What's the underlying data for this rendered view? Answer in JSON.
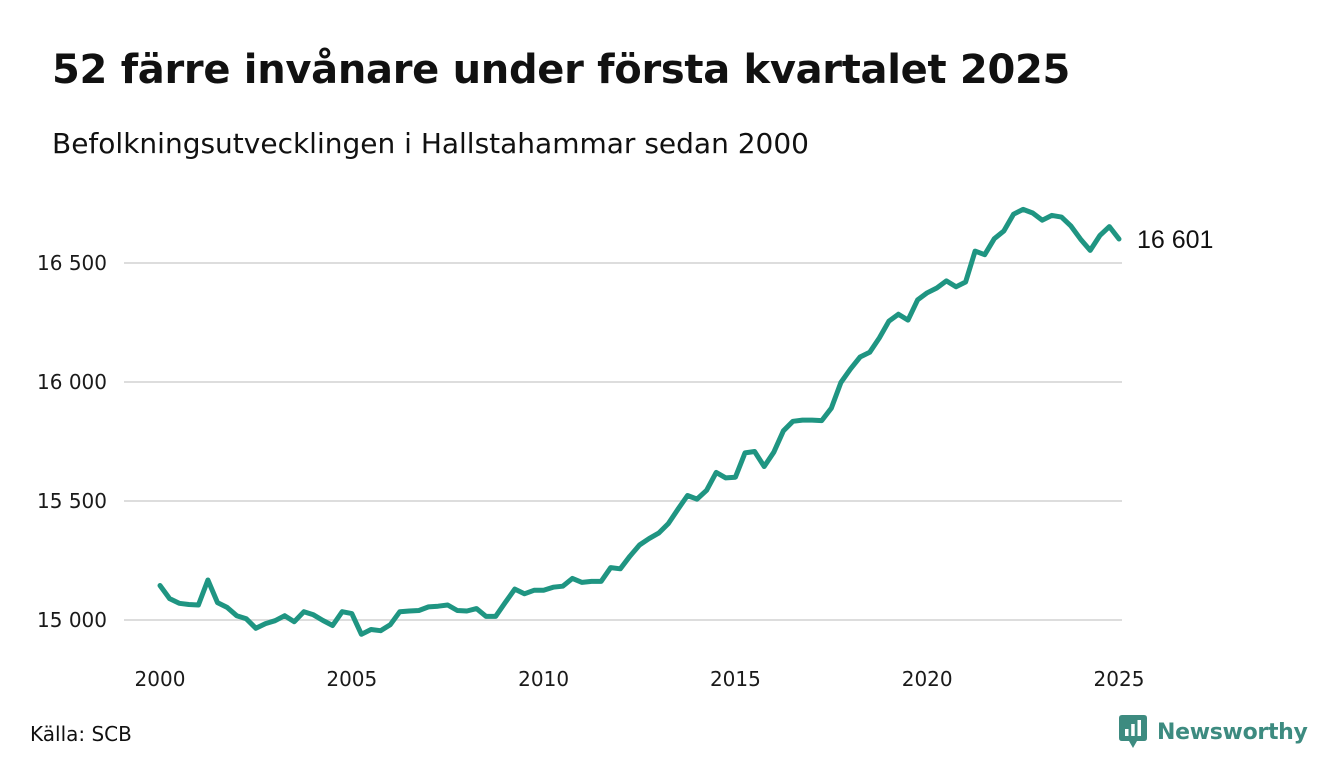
{
  "title": "52 färre invånare under första kvartalet 2025",
  "subtitle": "Befolkningsutvecklingen i Hallstahammar sedan 2000",
  "source": "Källa: SCB",
  "brand": {
    "name": "Newsworthy",
    "icon": "newsworthy-logo-icon",
    "color": "#3d8b80"
  },
  "chart_data": {
    "type": "line",
    "title": "52 färre invånare under första kvartalet 2025",
    "subtitle": "Befolkningsutvecklingen i Hallstahammar sedan 2000",
    "xlabel": "",
    "ylabel": "",
    "x_ticks": [
      2000,
      2005,
      2010,
      2015,
      2020,
      2025
    ],
    "x_tick_labels": [
      "2000",
      "2005",
      "2010",
      "2015",
      "2020",
      "2025"
    ],
    "y_ticks": [
      15000,
      15500,
      16000,
      16500
    ],
    "y_tick_labels": [
      "15 000",
      "15 500",
      "16 000",
      "16 500"
    ],
    "xlim": [
      2000,
      2025
    ],
    "ylim": [
      14900,
      16800
    ],
    "grid": "horizontal",
    "legend": "none",
    "line_color": "#1f9582",
    "end_label": "16 601",
    "series": [
      {
        "x": [
          2000,
          2000.25,
          2000.5,
          2000.75,
          2001,
          2001.25,
          2001.5,
          2001.75,
          2002,
          2002.25,
          2002.5,
          2002.75,
          2003,
          2003.25,
          2003.5,
          2003.75,
          2004,
          2004.25,
          2004.5,
          2004.75,
          2005,
          2005.25,
          2005.5,
          2005.75,
          2006,
          2006.25,
          2006.5,
          2006.75,
          2007,
          2007.25,
          2007.5,
          2007.75,
          2008,
          2008.25,
          2008.5,
          2008.75,
          2009,
          2009.25,
          2009.5,
          2009.75,
          2010,
          2010.25,
          2010.5,
          2010.75,
          2011,
          2011.25,
          2011.5,
          2011.75,
          2012,
          2012.25,
          2012.5,
          2012.75,
          2013,
          2013.25,
          2013.5,
          2013.75,
          2014,
          2014.25,
          2014.5,
          2014.75,
          2015,
          2015.25,
          2015.5,
          2015.75,
          2016,
          2016.25,
          2016.5,
          2016.75,
          2017,
          2017.25,
          2017.5,
          2017.75,
          2018,
          2018.25,
          2018.5,
          2018.75,
          2019,
          2019.25,
          2019.5,
          2019.75,
          2020,
          2020.25,
          2020.5,
          2020.75,
          2021,
          2021.25,
          2021.5,
          2021.75,
          2022,
          2022.25,
          2022.5,
          2022.75,
          2023,
          2023.25,
          2023.5,
          2023.75,
          2024,
          2024.25,
          2024.5,
          2024.75,
          2025
        ],
        "values": [
          15145,
          15090,
          15070,
          15065,
          15063,
          15168,
          15073,
          15053,
          15018,
          15005,
          14965,
          14985,
          14997,
          15018,
          14993,
          15035,
          15022,
          14998,
          14977,
          15035,
          15027,
          14940,
          14960,
          14955,
          14980,
          15035,
          15038,
          15040,
          15055,
          15058,
          15063,
          15040,
          15038,
          15048,
          15015,
          15015,
          15073,
          15130,
          15110,
          15125,
          15125,
          15138,
          15142,
          15175,
          15158,
          15162,
          15162,
          15220,
          15215,
          15268,
          15315,
          15342,
          15365,
          15405,
          15465,
          15523,
          15508,
          15545,
          15620,
          15597,
          15600,
          15702,
          15708,
          15645,
          15705,
          15795,
          15835,
          15840,
          15840,
          15838,
          15890,
          15998,
          16055,
          16105,
          16125,
          16185,
          16255,
          16285,
          16260,
          16345,
          16375,
          16395,
          16425,
          16400,
          16420,
          16550,
          16535,
          16602,
          16635,
          16705,
          16725,
          16710,
          16680,
          16700,
          16693,
          16655,
          16600,
          16553,
          16615,
          16653,
          16601
        ]
      }
    ]
  }
}
